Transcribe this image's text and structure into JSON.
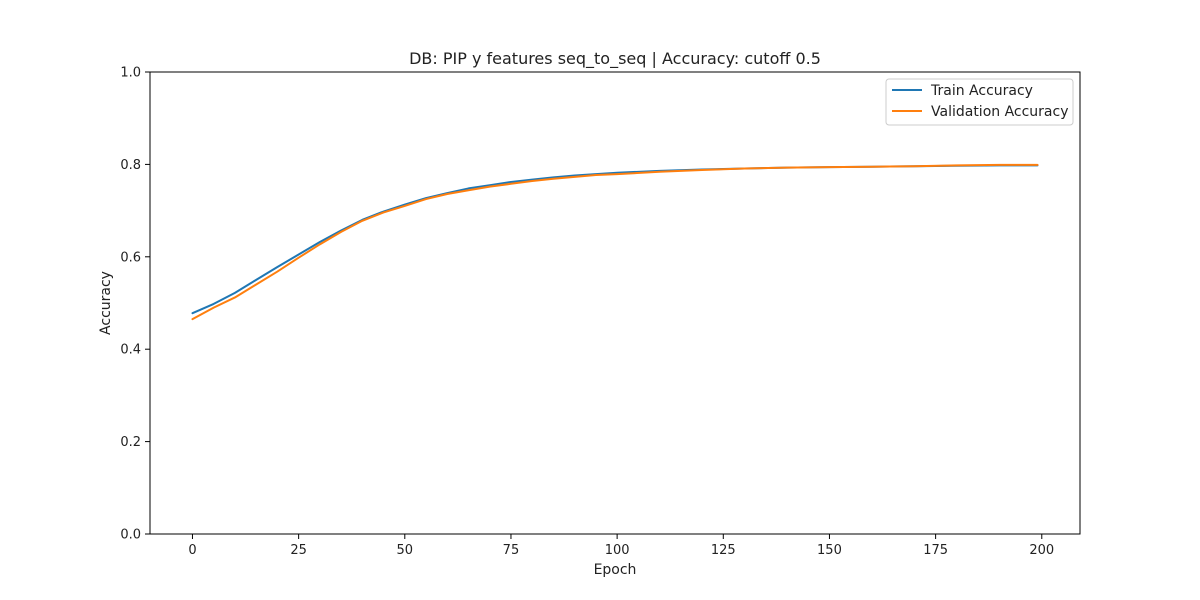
{
  "chart_data": {
    "type": "line",
    "title": "DB: PIP y features seq_to_seq | Accuracy: cutoff 0.5",
    "xlabel": "Epoch",
    "ylabel": "Accuracy",
    "xlim": [
      -10,
      209
    ],
    "ylim": [
      0.0,
      1.0
    ],
    "xticks": [
      0,
      25,
      50,
      75,
      100,
      125,
      150,
      175,
      200
    ],
    "yticks": [
      0.0,
      0.2,
      0.4,
      0.6,
      0.8,
      1.0
    ],
    "xtick_labels": [
      "0",
      "25",
      "50",
      "75",
      "100",
      "125",
      "150",
      "175",
      "200"
    ],
    "ytick_labels": [
      "0.0",
      "0.2",
      "0.4",
      "0.6",
      "0.8",
      "1.0"
    ],
    "grid": false,
    "legend_position": "top-right",
    "series": [
      {
        "name": "Train Accuracy",
        "color": "#1f77b4",
        "x": [
          0,
          5,
          10,
          15,
          20,
          25,
          30,
          35,
          40,
          45,
          50,
          55,
          60,
          65,
          70,
          75,
          80,
          85,
          90,
          95,
          100,
          110,
          120,
          130,
          140,
          150,
          160,
          170,
          180,
          190,
          199
        ],
        "y": [
          0.478,
          0.498,
          0.522,
          0.55,
          0.578,
          0.605,
          0.632,
          0.657,
          0.68,
          0.698,
          0.713,
          0.727,
          0.738,
          0.748,
          0.755,
          0.762,
          0.767,
          0.772,
          0.776,
          0.779,
          0.782,
          0.786,
          0.789,
          0.791,
          0.793,
          0.794,
          0.795,
          0.796,
          0.797,
          0.798,
          0.798
        ]
      },
      {
        "name": "Validation Accuracy",
        "color": "#ff7f0e",
        "x": [
          0,
          5,
          10,
          15,
          20,
          25,
          30,
          35,
          40,
          45,
          50,
          55,
          60,
          65,
          70,
          75,
          80,
          85,
          90,
          95,
          100,
          110,
          120,
          130,
          140,
          150,
          160,
          170,
          180,
          190,
          199
        ],
        "y": [
          0.465,
          0.49,
          0.512,
          0.54,
          0.568,
          0.598,
          0.627,
          0.654,
          0.678,
          0.696,
          0.71,
          0.725,
          0.736,
          0.744,
          0.752,
          0.758,
          0.764,
          0.769,
          0.773,
          0.777,
          0.779,
          0.784,
          0.788,
          0.791,
          0.793,
          0.794,
          0.795,
          0.796,
          0.798,
          0.799,
          0.799
        ]
      }
    ]
  }
}
